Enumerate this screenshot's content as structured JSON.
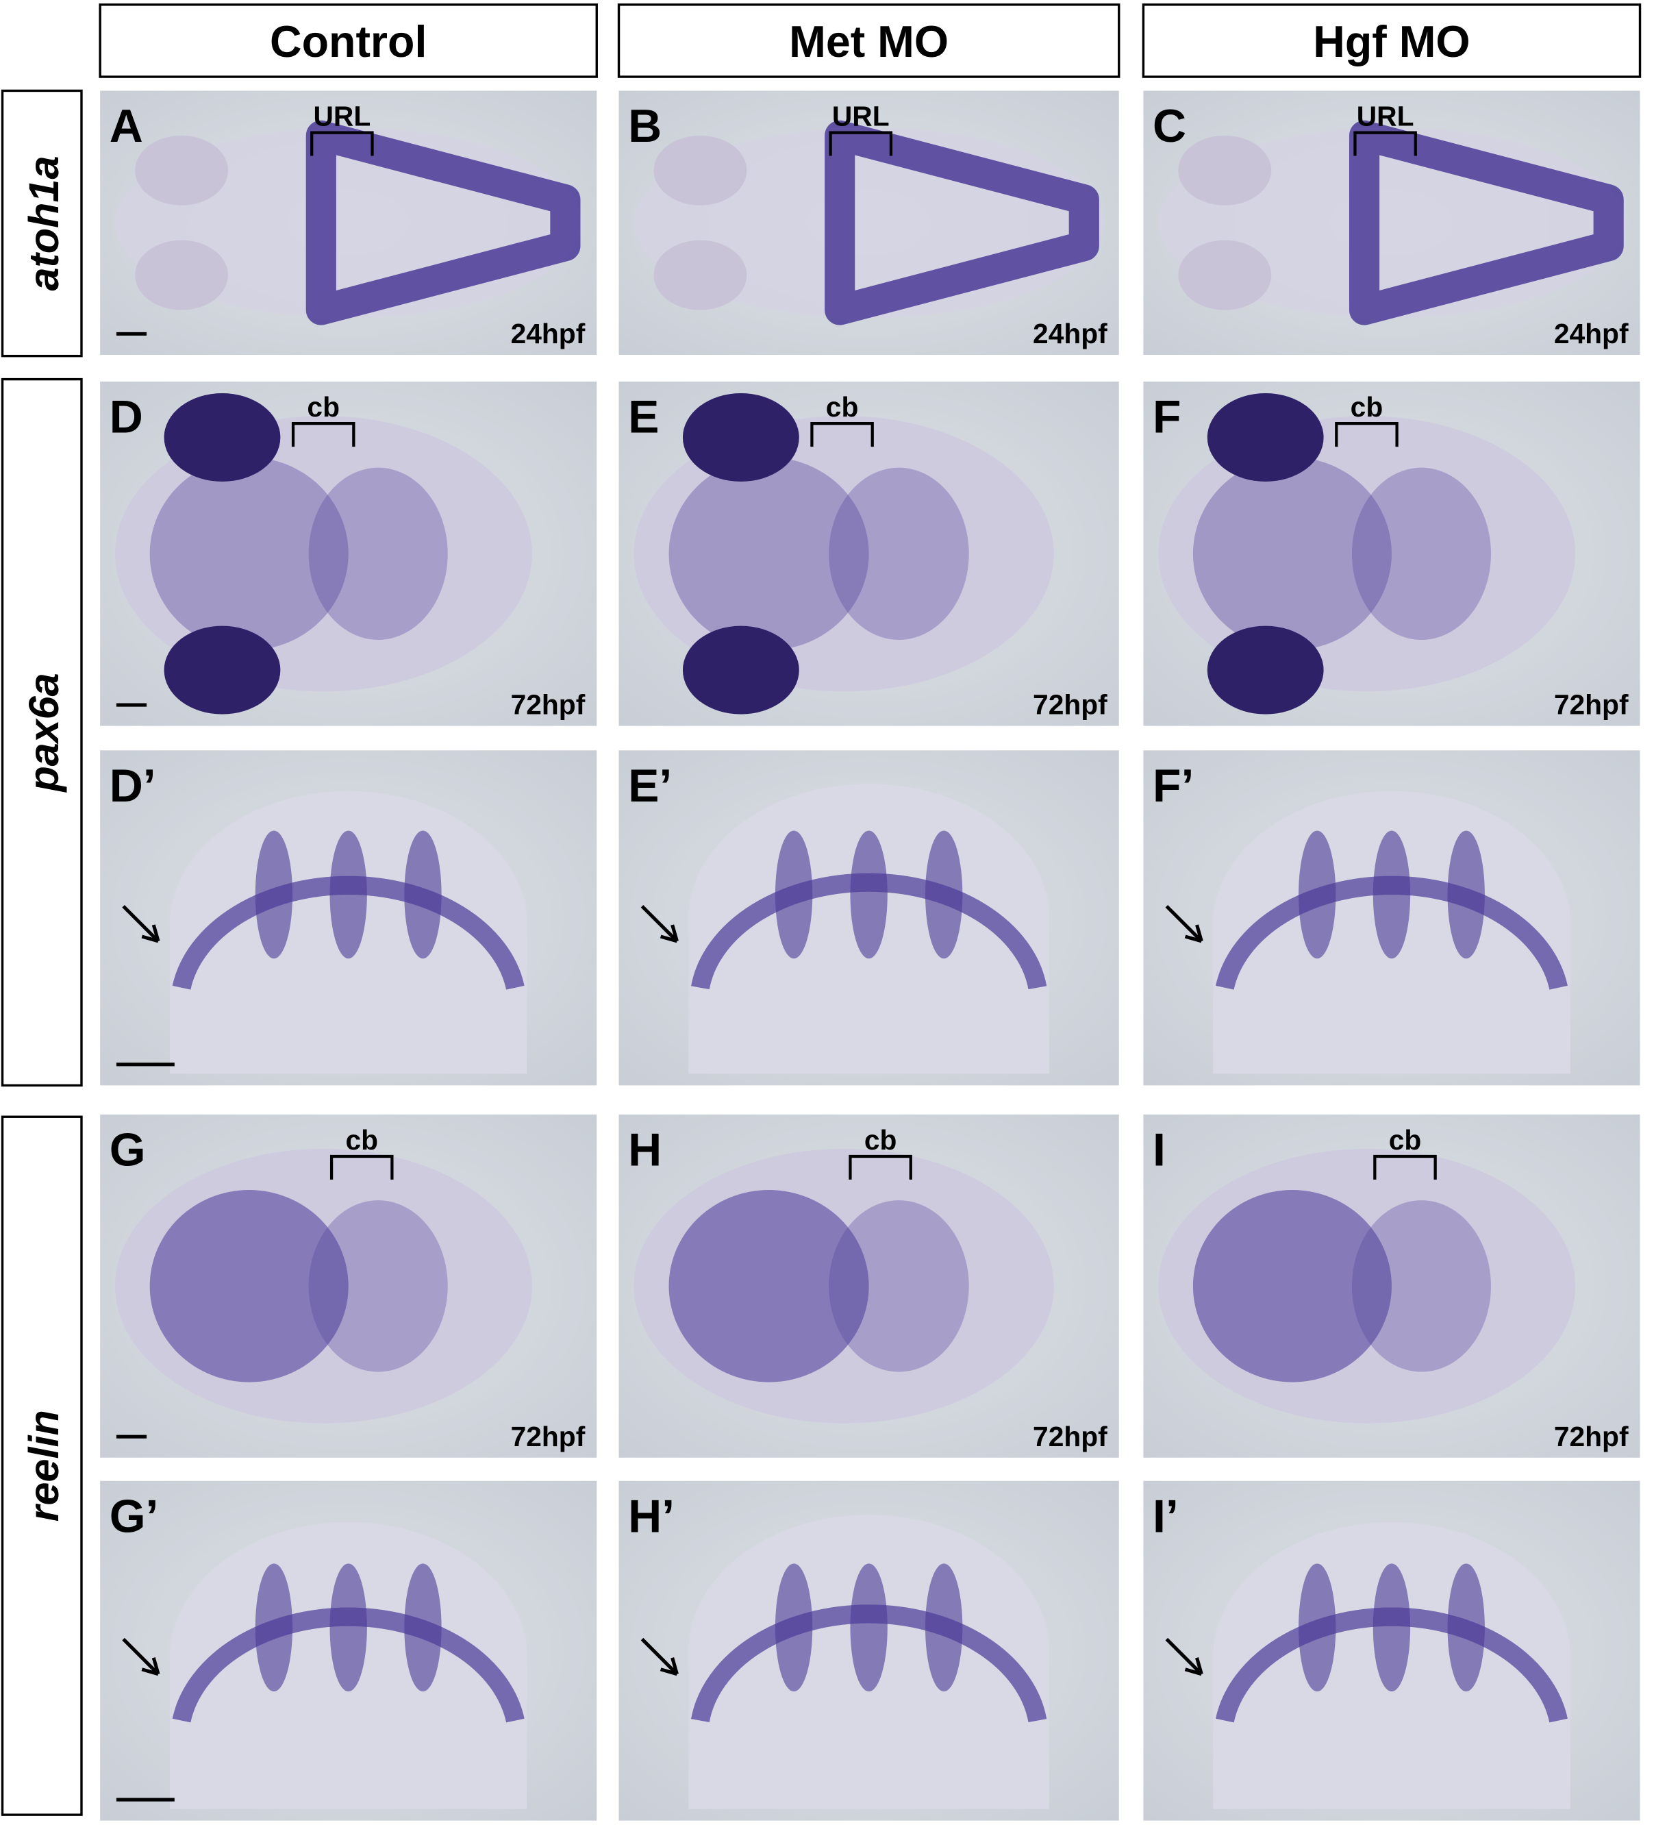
{
  "columns": [
    "Control",
    "Met MO",
    "Hgf MO"
  ],
  "row_labels": [
    "atoh1a",
    "pax6a",
    "reelin"
  ],
  "panel_rows": [
    {
      "panels": [
        {
          "letter": "A",
          "bracket": "URL",
          "stage": "24hpf"
        },
        {
          "letter": "B",
          "bracket": "URL",
          "stage": "24hpf"
        },
        {
          "letter": "C",
          "bracket": "URL",
          "stage": "24hpf"
        }
      ]
    },
    {
      "panels": [
        {
          "letter": "D",
          "bracket": "cb",
          "stage": "72hpf"
        },
        {
          "letter": "E",
          "bracket": "cb",
          "stage": "72hpf"
        },
        {
          "letter": "F",
          "bracket": "cb",
          "stage": "72hpf"
        }
      ]
    },
    {
      "panels": [
        {
          "letter": "D’"
        },
        {
          "letter": "E’"
        },
        {
          "letter": "F’"
        }
      ]
    },
    {
      "panels": [
        {
          "letter": "G",
          "bracket": "cb",
          "stage": "72hpf"
        },
        {
          "letter": "H",
          "bracket": "cb",
          "stage": "72hpf"
        },
        {
          "letter": "I",
          "bracket": "cb",
          "stage": "72hpf"
        }
      ]
    },
    {
      "panels": [
        {
          "letter": "G’"
        },
        {
          "letter": "H’"
        },
        {
          "letter": "I’"
        }
      ]
    }
  ]
}
